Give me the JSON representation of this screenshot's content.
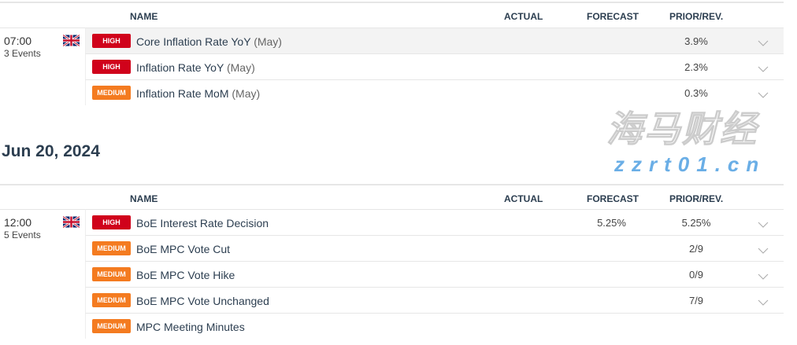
{
  "columns": {
    "name": "NAME",
    "actual": "ACTUAL",
    "forecast": "FORECAST",
    "prior": "PRIOR/REV."
  },
  "groups": [
    {
      "time": "07:00",
      "count": "3 Events",
      "country": "United Kingdom",
      "events": [
        {
          "impact": "HIGH",
          "name": "Core Inflation Rate YoY",
          "period": "(May)",
          "actual": "",
          "forecast": "",
          "prior": "3.9%"
        },
        {
          "impact": "HIGH",
          "name": "Inflation Rate YoY",
          "period": "(May)",
          "actual": "",
          "forecast": "",
          "prior": "2.3%"
        },
        {
          "impact": "MEDIUM",
          "name": "Inflation Rate MoM",
          "period": "(May)",
          "actual": "",
          "forecast": "",
          "prior": "0.3%"
        }
      ]
    },
    {
      "date": "Jun 20, 2024",
      "time": "12:00",
      "count": "5 Events",
      "country": "United Kingdom",
      "events": [
        {
          "impact": "HIGH",
          "name": "BoE Interest Rate Decision",
          "period": "",
          "actual": "",
          "forecast": "5.25%",
          "prior": "5.25%"
        },
        {
          "impact": "MEDIUM",
          "name": "BoE MPC Vote Cut",
          "period": "",
          "actual": "",
          "forecast": "",
          "prior": "2/9"
        },
        {
          "impact": "MEDIUM",
          "name": "BoE MPC Vote Hike",
          "period": "",
          "actual": "",
          "forecast": "",
          "prior": "0/9"
        },
        {
          "impact": "MEDIUM",
          "name": "BoE MPC Vote Unchanged",
          "period": "",
          "actual": "",
          "forecast": "",
          "prior": "7/9"
        },
        {
          "impact": "MEDIUM",
          "name": "MPC Meeting Minutes",
          "period": "",
          "actual": "",
          "forecast": "",
          "prior": ""
        }
      ]
    }
  ],
  "colors": {
    "high": "#d0021b",
    "medium": "#f47b20"
  },
  "watermark": {
    "cn": "海马财经",
    "url": "zzrt01.cn"
  }
}
